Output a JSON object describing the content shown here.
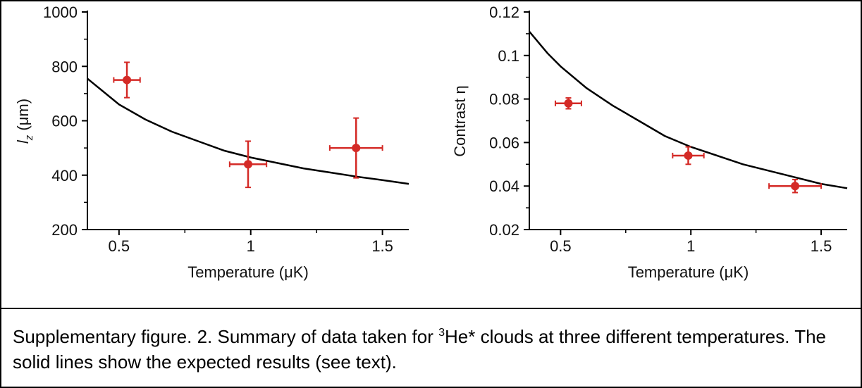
{
  "caption": {
    "before_sup": "Supplementary figure. 2. Summary of data taken for ",
    "sup": "3",
    "after_sup": "He* clouds at three different temperatures. The solid lines show the expected results (see text)."
  },
  "colors": {
    "data": "#d42a26",
    "curve": "#000000",
    "axis": "#000000"
  },
  "chart_data": [
    {
      "type": "scatter",
      "xlabel": "Temperature (μK)",
      "ylabel": "l_z (μm)",
      "ylabel_parts": {
        "symbol": "l",
        "subscript": "z",
        "rest": " (μm)"
      },
      "xlim": [
        0.38,
        1.6
      ],
      "ylim": [
        200,
        1000
      ],
      "xticks": [
        0.5,
        1,
        1.5
      ],
      "xtick_labels": [
        "0.5",
        "1",
        "1.5"
      ],
      "yticks": [
        200,
        400,
        600,
        800,
        1000
      ],
      "ytick_labels": [
        "200",
        "400",
        "600",
        "800",
        "1000"
      ],
      "points": [
        {
          "x": 0.53,
          "y": 750,
          "xerr": 0.05,
          "yerr": 65
        },
        {
          "x": 0.99,
          "y": 440,
          "xerr": 0.07,
          "yerr": 85
        },
        {
          "x": 1.4,
          "y": 500,
          "xerr": 0.1,
          "yerr": 110
        }
      ],
      "curve": {
        "x": [
          0.38,
          0.5,
          0.6,
          0.7,
          0.8,
          0.9,
          1.0,
          1.1,
          1.2,
          1.3,
          1.4,
          1.5,
          1.6
        ],
        "y": [
          755,
          660,
          605,
          560,
          525,
          490,
          465,
          445,
          425,
          410,
          395,
          382,
          368
        ]
      }
    },
    {
      "type": "scatter",
      "xlabel": "Temperature (μK)",
      "ylabel": "Contrast η",
      "xlim": [
        0.38,
        1.6
      ],
      "ylim": [
        0.02,
        0.12
      ],
      "xticks": [
        0.5,
        1,
        1.5
      ],
      "xtick_labels": [
        "0.5",
        "1",
        "1.5"
      ],
      "yticks": [
        0.02,
        0.04,
        0.06,
        0.08,
        0.1,
        0.12
      ],
      "ytick_labels": [
        "0.02",
        "0.04",
        "0.06",
        "0.08",
        "0.1",
        "0.12"
      ],
      "points": [
        {
          "x": 0.53,
          "y": 0.078,
          "xerr": 0.05,
          "yerr": 0.0025
        },
        {
          "x": 0.99,
          "y": 0.054,
          "xerr": 0.06,
          "yerr": 0.004
        },
        {
          "x": 1.4,
          "y": 0.04,
          "xerr": 0.1,
          "yerr": 0.003
        }
      ],
      "curve": {
        "x": [
          0.38,
          0.45,
          0.5,
          0.6,
          0.7,
          0.8,
          0.9,
          1.0,
          1.1,
          1.2,
          1.3,
          1.4,
          1.5,
          1.6
        ],
        "y": [
          0.111,
          0.101,
          0.095,
          0.085,
          0.077,
          0.07,
          0.063,
          0.058,
          0.054,
          0.05,
          0.047,
          0.044,
          0.041,
          0.039
        ]
      }
    }
  ]
}
